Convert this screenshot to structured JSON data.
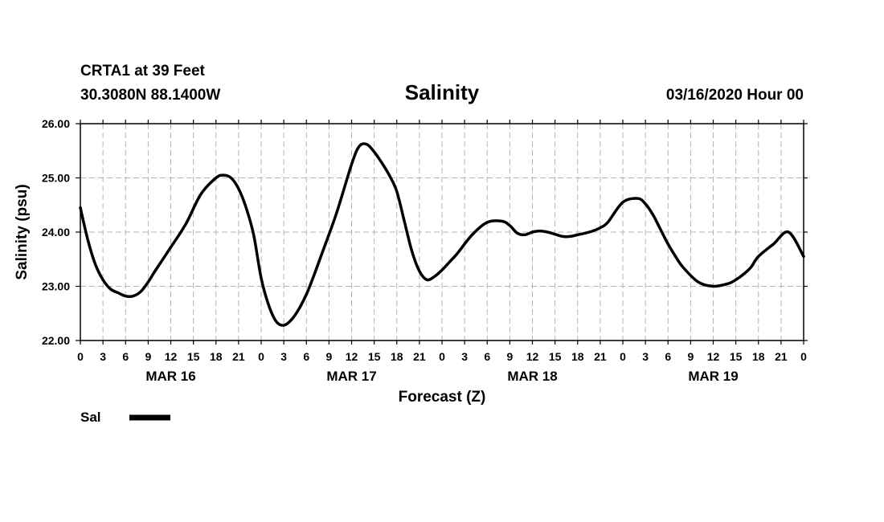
{
  "header": {
    "station": "CRTA1 at 39 Feet",
    "coords": "30.3080N 88.1400W",
    "datetime": "03/16/2020 Hour 00"
  },
  "legend": {
    "label": "Sal"
  },
  "chart_data": {
    "type": "line",
    "title": "Salinity",
    "xlabel": "Forecast (Z)",
    "ylabel": "Salinity (psu)",
    "ylim": [
      22.0,
      26.0
    ],
    "xlim": [
      0,
      96
    ],
    "grid": true,
    "y_ticks": [
      "22.00",
      "23.00",
      "24.00",
      "25.00",
      "26.00"
    ],
    "y_tick_values": [
      22,
      23,
      24,
      25,
      26
    ],
    "x_tick_labels": [
      "0",
      "3",
      "6",
      "9",
      "12",
      "15",
      "18",
      "21",
      "0",
      "3",
      "6",
      "9",
      "12",
      "15",
      "18",
      "21",
      "0",
      "3",
      "6",
      "9",
      "12",
      "15",
      "18",
      "21",
      "0",
      "3",
      "6",
      "9",
      "12",
      "15",
      "18",
      "21",
      "0"
    ],
    "date_labels": [
      {
        "label": "MAR 16",
        "hour": 12
      },
      {
        "label": "MAR 17",
        "hour": 36
      },
      {
        "label": "MAR 18",
        "hour": 60
      },
      {
        "label": "MAR 19",
        "hour": 84
      }
    ],
    "series": [
      {
        "name": "Sal",
        "x": [
          0,
          1,
          2,
          3,
          4,
          5,
          6,
          7,
          8,
          9,
          10,
          12,
          14,
          16,
          18,
          19,
          20,
          21,
          22,
          23,
          24,
          25,
          26,
          27,
          28,
          29,
          30,
          31,
          32,
          34,
          36,
          37,
          38,
          39,
          40,
          41,
          42,
          43,
          44,
          45,
          46,
          47,
          48,
          49,
          50,
          52,
          54,
          56,
          57,
          58,
          59,
          60,
          61,
          62,
          63,
          64,
          65,
          66,
          67,
          68,
          69,
          70,
          72,
          74,
          75,
          76,
          77,
          78,
          79,
          80,
          82,
          84,
          86,
          87,
          88,
          89,
          90,
          92,
          94,
          96
        ],
        "values": [
          24.45,
          23.85,
          23.4,
          23.12,
          22.95,
          22.88,
          22.82,
          22.82,
          22.9,
          23.08,
          23.3,
          23.72,
          24.15,
          24.7,
          25.0,
          25.05,
          25.0,
          24.8,
          24.45,
          23.95,
          23.15,
          22.65,
          22.35,
          22.28,
          22.38,
          22.58,
          22.85,
          23.2,
          23.58,
          24.35,
          25.25,
          25.58,
          25.62,
          25.48,
          25.28,
          25.05,
          24.75,
          24.2,
          23.65,
          23.28,
          23.12,
          23.18,
          23.3,
          23.45,
          23.6,
          23.95,
          24.18,
          24.2,
          24.12,
          23.98,
          23.95,
          24.0,
          24.02,
          24.0,
          23.96,
          23.92,
          23.92,
          23.95,
          23.98,
          24.02,
          24.08,
          24.18,
          24.55,
          24.62,
          24.52,
          24.32,
          24.05,
          23.78,
          23.55,
          23.35,
          23.08,
          23.0,
          23.05,
          23.12,
          23.22,
          23.35,
          23.55,
          23.78,
          24.0,
          23.55
        ]
      }
    ]
  }
}
